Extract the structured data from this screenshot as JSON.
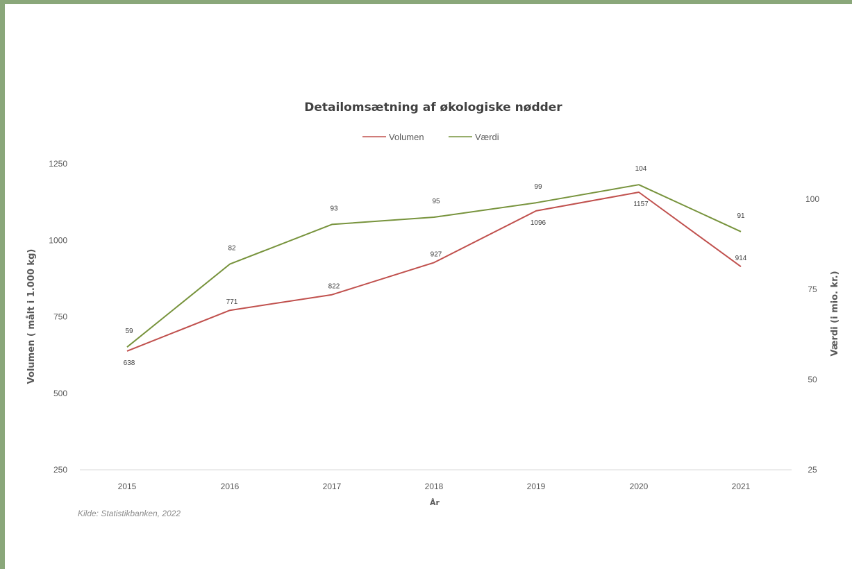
{
  "chart_data": {
    "type": "line",
    "title": "Detailomsætning af økologiske nødder",
    "xlabel": "År",
    "ylabel_left": "Volumen ( målt i 1.000 kg)",
    "ylabel_right": "Værdi (i mio. kr.)",
    "x": [
      "2015",
      "2016",
      "2017",
      "2018",
      "2019",
      "2020",
      "2021"
    ],
    "ylim_left": [
      250,
      1250
    ],
    "yticks_left": [
      "250",
      "500",
      "750",
      "1000",
      "1250"
    ],
    "ylim_right": [
      25,
      110
    ],
    "yticks_right": [
      "25",
      "50",
      "75",
      "100"
    ],
    "series": [
      {
        "name": "Volumen",
        "axis": "left",
        "color": "#c0504d",
        "values": [
          638,
          771,
          822,
          927,
          1096,
          1157,
          914
        ],
        "labels": [
          "638",
          "771",
          "822",
          "927",
          "1096",
          "1157",
          "914"
        ]
      },
      {
        "name": "Værdi",
        "axis": "right",
        "color": "#77933c",
        "values": [
          59,
          82,
          93,
          95,
          99,
          104,
          91
        ],
        "labels": [
          "59",
          "82",
          "93",
          "95",
          "99",
          "104",
          "91"
        ]
      }
    ],
    "legend": "top-center",
    "grid": false
  },
  "source": "Kilde: Statistikbanken, 2022"
}
